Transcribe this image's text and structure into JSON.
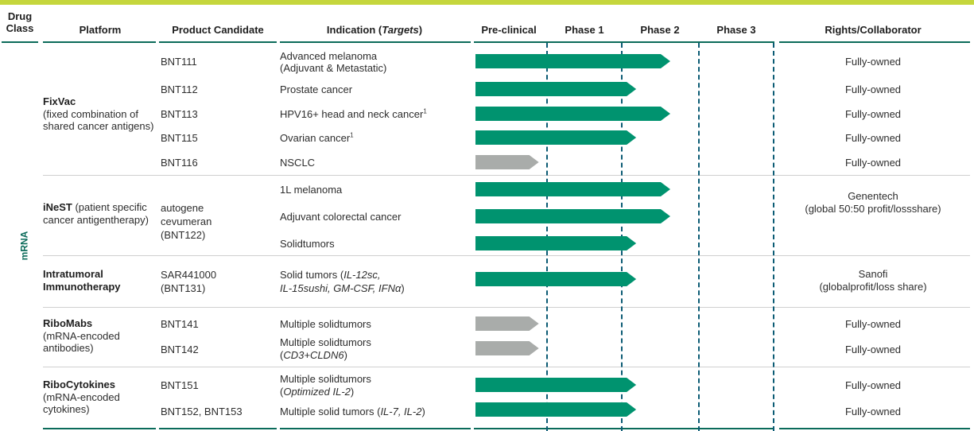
{
  "headers": {
    "drug_class": "Drug Class",
    "platform": "Platform",
    "product_candidate": "Product Candidate",
    "indication_text": "Indication (",
    "indication_italic": "Targets",
    "indication_close": ")",
    "preclinical": "Pre-clinical",
    "phase1": "Phase 1",
    "phase2": "Phase 2",
    "phase3": "Phase 3",
    "rights": "Rights/Collaborator"
  },
  "drug_class_label": "mRNA",
  "platforms": {
    "fixvac_name": "FixVac",
    "fixvac_desc": "(fixed combination of shared cancer antigens)",
    "inest_name": "iNeST",
    "inest_desc": " (patient specific cancer antigentherapy)",
    "intratumoral_name": "Intratumoral Immunotherapy",
    "ribomabs_name": "RiboMabs",
    "ribomabs_desc": "(mRNA-encoded antibodies)",
    "ribocytokines_name": "RiboCytokines",
    "ribocytokines_desc": "(mRNA-encoded cytokines)"
  },
  "products": {
    "bnt111": "BNT111",
    "bnt112": "BNT112",
    "bnt113": "BNT113",
    "bnt115": "BNT115",
    "bnt116": "BNT116",
    "inest_line1": "autogene",
    "inest_line2": "cevumeran",
    "inest_line3": "(BNT122)",
    "sar_line1": "SAR441000",
    "sar_line2": "(BNT131)",
    "bnt141": "BNT141",
    "bnt142": "BNT142",
    "bnt151": "BNT151",
    "bnt152_153": "BNT152, BNT153"
  },
  "indications": {
    "bnt111_l1": "Advanced melanoma",
    "bnt111_l2": "(Adjuvant & Metastatic)",
    "bnt112": "Prostate cancer",
    "bnt113": "HPV16+ head and neck cancer",
    "bnt113_sup": "1",
    "bnt115": "Ovarian cancer",
    "bnt115_sup": "1",
    "bnt116": "NSCLC",
    "inest_1": "1L melanoma",
    "inest_2": "Adjuvant colorectal cancer",
    "inest_3": "Solidtumors",
    "sar_l1_text": "Solid tumors (",
    "sar_l1_italic": "IL-12sc,",
    "sar_l2_italic": "IL-15sushi, GM-CSF, IFNα",
    "sar_l2_close": ")",
    "bnt141": "Multiple solidtumors",
    "bnt142_l1": "Multiple solidtumors",
    "bnt142_l2_open": "(",
    "bnt142_l2_italic": "CD3+CLDN6",
    "bnt142_l2_close": ")",
    "bnt151_l1": "Multiple solidtumors",
    "bnt151_l2_open": "(",
    "bnt151_l2_italic": "Optimized IL-2",
    "bnt151_l2_close": ")",
    "bnt152_text": "Multiple solid tumors (",
    "bnt152_italic": "IL-7, IL-2",
    "bnt152_close": ")"
  },
  "rights": {
    "fully_owned": "Fully-owned",
    "genentech_l1": "Genentech",
    "genentech_l2": "(global 50:50 profit/lossshare)",
    "sanofi_l1": "Sanofi",
    "sanofi_l2": "(globalprofit/loss share)"
  },
  "phases": [
    "Pre-clinical",
    "Phase 1",
    "Phase 2",
    "Phase 3"
  ],
  "programs": [
    {
      "product": "BNT111",
      "phase": "Phase 2",
      "progress": 2.0,
      "status": "active"
    },
    {
      "product": "BNT112",
      "phase": "Phase 1",
      "progress": 1.65,
      "status": "active"
    },
    {
      "product": "BNT113",
      "phase": "Phase 2",
      "progress": 2.0,
      "status": "active"
    },
    {
      "product": "BNT115",
      "phase": "Phase 1",
      "progress": 1.65,
      "status": "active"
    },
    {
      "product": "BNT116",
      "phase": "Pre-clinical",
      "progress": 0.65,
      "status": "inactive"
    },
    {
      "product": "autogene cevumeran 1L melanoma",
      "phase": "Phase 2",
      "progress": 2.0,
      "status": "active"
    },
    {
      "product": "autogene cevumeran Adjuvant colorectal cancer",
      "phase": "Phase 2",
      "progress": 2.0,
      "status": "active"
    },
    {
      "product": "autogene cevumeran Solidtumors",
      "phase": "Phase 1",
      "progress": 1.65,
      "status": "active"
    },
    {
      "product": "SAR441000",
      "phase": "Phase 1",
      "progress": 1.65,
      "status": "active"
    },
    {
      "product": "BNT141",
      "phase": "Pre-clinical",
      "progress": 0.65,
      "status": "inactive"
    },
    {
      "product": "BNT142",
      "phase": "Pre-clinical",
      "progress": 0.65,
      "status": "inactive"
    },
    {
      "product": "BNT151",
      "phase": "Phase 1",
      "progress": 1.65,
      "status": "active"
    },
    {
      "product": "BNT152, BNT153",
      "phase": "Phase 1",
      "progress": 1.65,
      "status": "active"
    }
  ],
  "colors": {
    "active": "#00936f",
    "inactive": "#a9acaa",
    "rule": "#0b6b5a",
    "dash": "#0b5b74",
    "topbar": "#c5d63d"
  }
}
